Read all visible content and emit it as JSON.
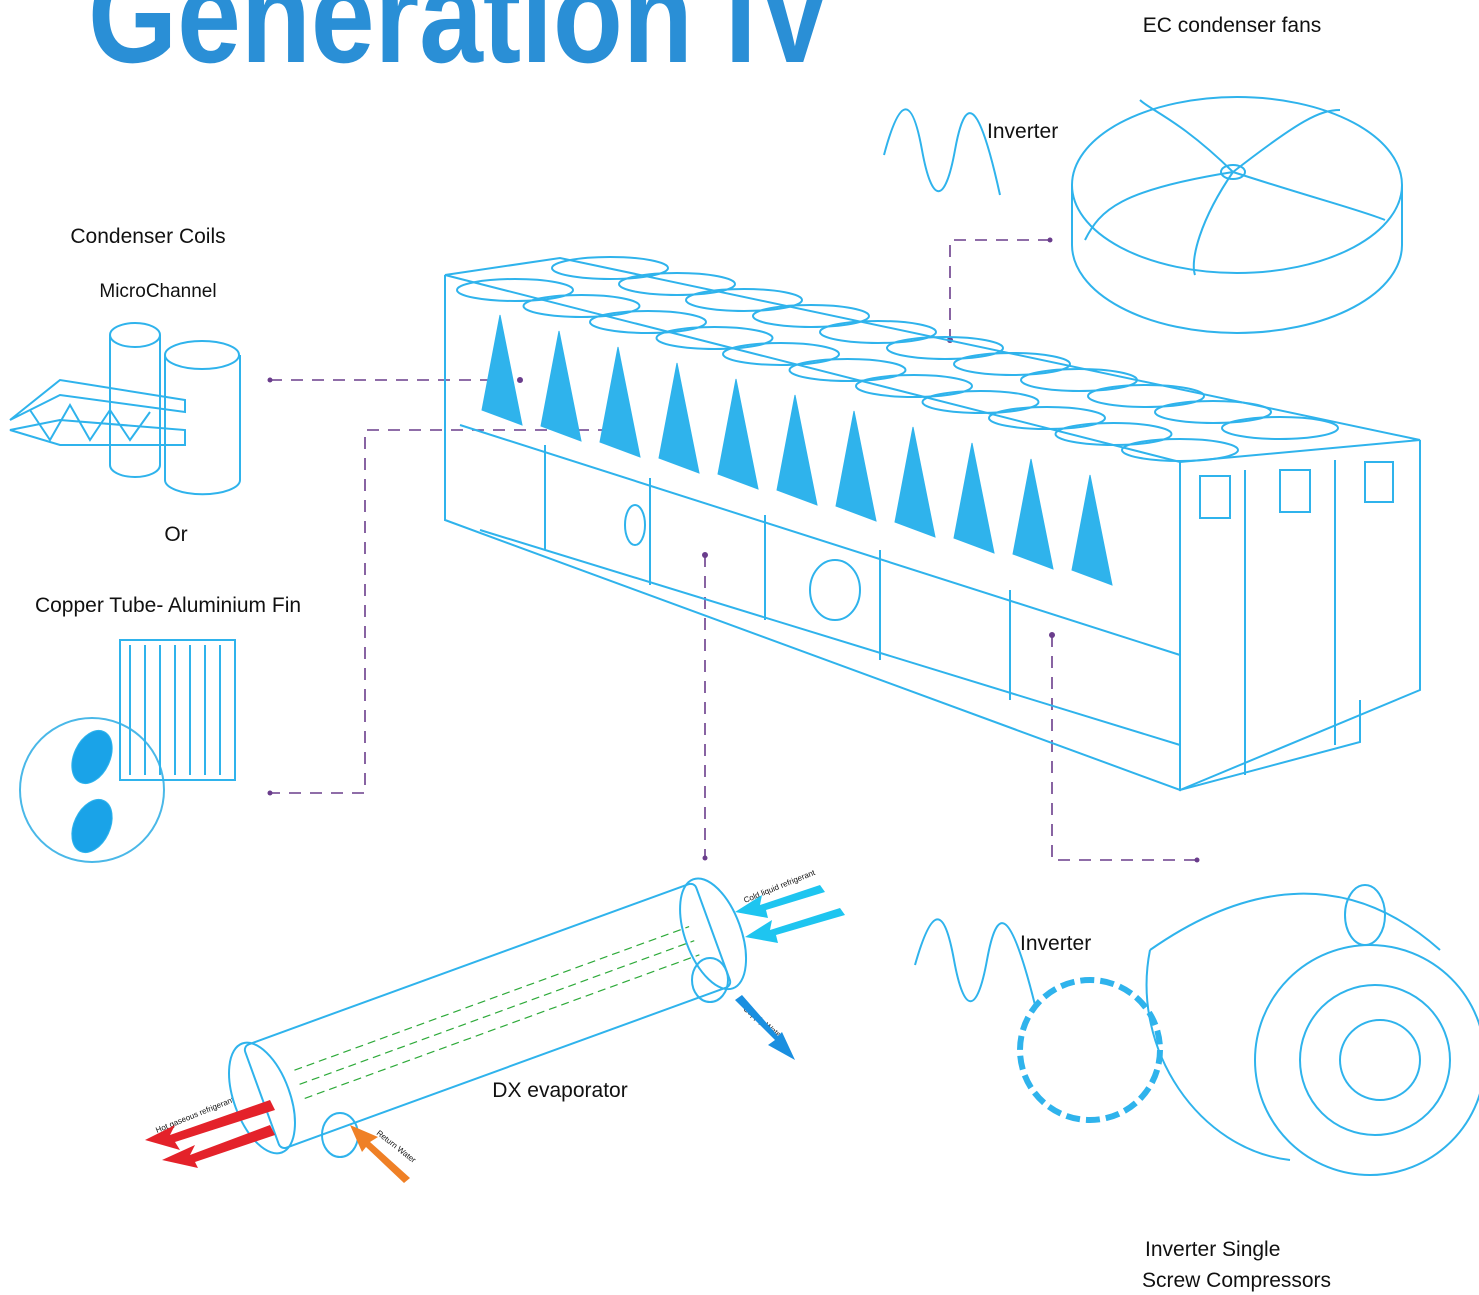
{
  "title": "Generation IV",
  "fans": {
    "label": "EC condenser fans",
    "drive": "Inverter"
  },
  "coils": {
    "label": "Condenser Coils",
    "option_a": "MicroChannel",
    "separator": "Or",
    "option_b": "Copper Tube- Aluminium Fin"
  },
  "evaporator": {
    "label": "DX evaporator",
    "arrows": [
      "Cold liquid refrigerant",
      "Supply Water",
      "Hot gaseous refrigerant",
      "Return Water"
    ]
  },
  "compressor": {
    "drive": "Inverter",
    "label_lines": [
      "Inverter Single",
      "Screw Compressors"
    ]
  }
}
